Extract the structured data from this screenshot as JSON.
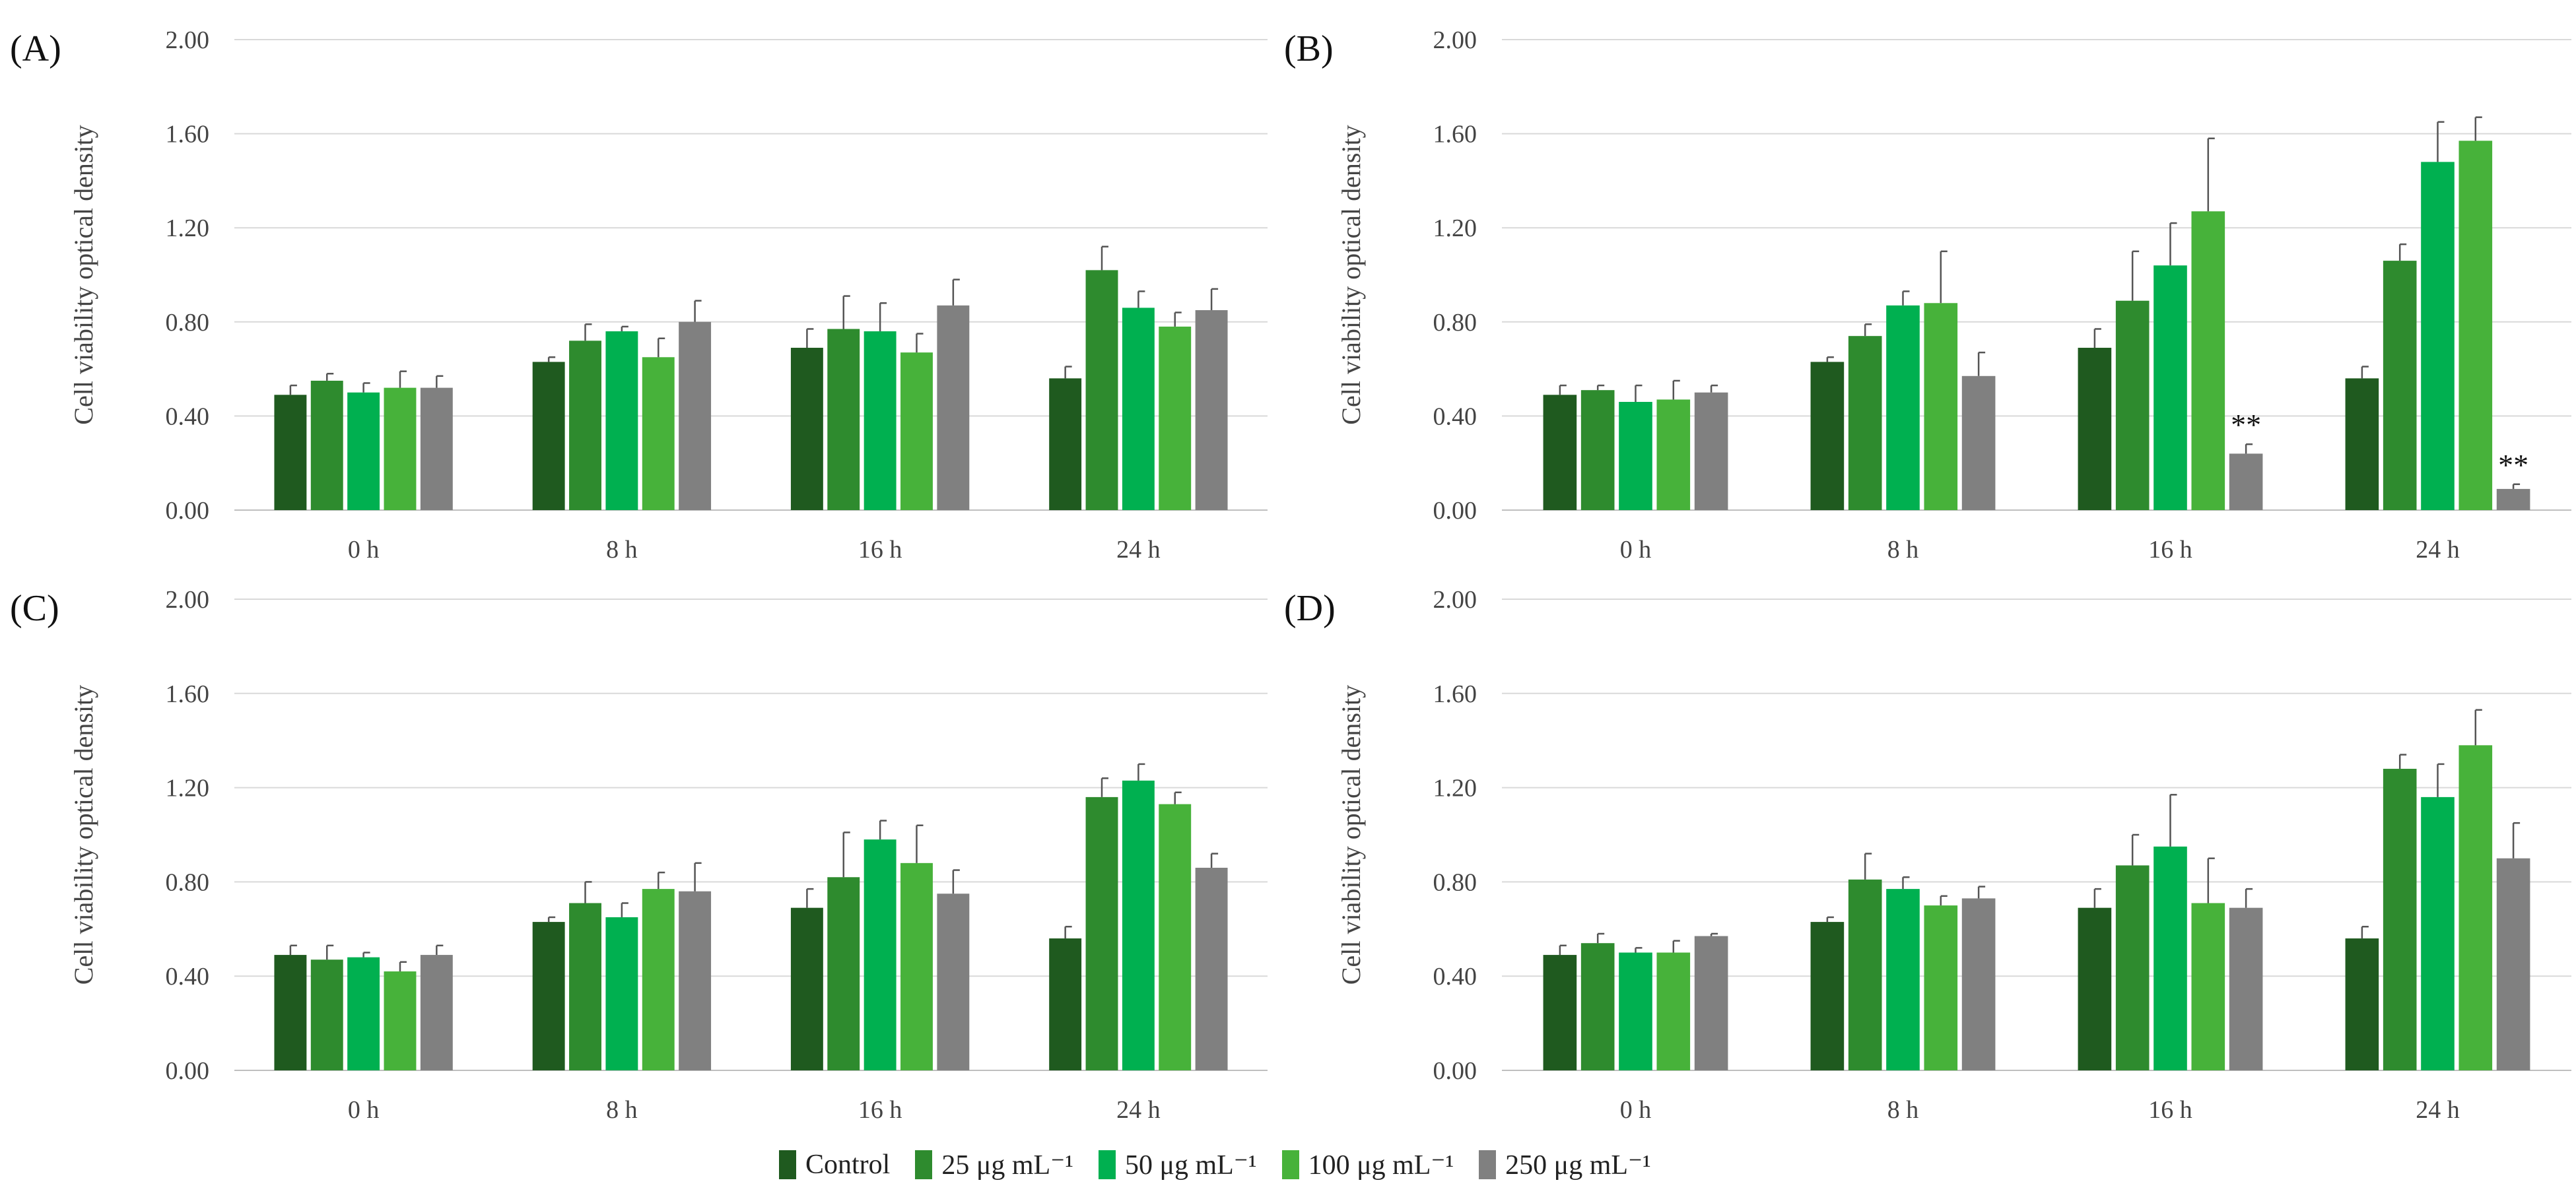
{
  "colors": {
    "Control": "#1f5a1f",
    "25": "#2e8b2e",
    "50": "#00b050",
    "100": "#47b23a",
    "250": "#808080"
  },
  "legend": {
    "items": [
      {
        "key": "Control",
        "label": "Control"
      },
      {
        "key": "25",
        "label": "25 μg mL⁻¹"
      },
      {
        "key": "50",
        "label": "50 μg mL⁻¹"
      },
      {
        "key": "100",
        "label": "100 μg mL⁻¹"
      },
      {
        "key": "250",
        "label": "250 μg mL⁻¹"
      }
    ]
  },
  "chart_data": [
    {
      "type": "bar",
      "panel": "(A)",
      "ylabel": "Cell viability optical density",
      "categories": [
        "0 h",
        "8 h",
        "16 h",
        "24 h"
      ],
      "ylim": [
        0,
        2.0
      ],
      "yticks": [
        "0.00",
        "0.40",
        "0.80",
        "1.20",
        "1.60",
        "2.00"
      ],
      "grid": true,
      "series": [
        {
          "name": "Control",
          "key": "Control",
          "values": [
            0.49,
            0.63,
            0.69,
            0.56
          ],
          "errors": [
            0.04,
            0.02,
            0.08,
            0.05
          ]
        },
        {
          "name": "25 μg mL⁻¹",
          "key": "25",
          "values": [
            0.55,
            0.72,
            0.77,
            1.02
          ],
          "errors": [
            0.03,
            0.07,
            0.14,
            0.1
          ]
        },
        {
          "name": "50 μg mL⁻¹",
          "key": "50",
          "values": [
            0.5,
            0.76,
            0.76,
            0.86
          ],
          "errors": [
            0.04,
            0.02,
            0.12,
            0.07
          ]
        },
        {
          "name": "100 μg mL⁻¹",
          "key": "100",
          "values": [
            0.52,
            0.65,
            0.67,
            0.78
          ],
          "errors": [
            0.07,
            0.08,
            0.08,
            0.06
          ]
        },
        {
          "name": "250 μg mL⁻¹",
          "key": "250",
          "values": [
            0.52,
            0.8,
            0.87,
            0.85
          ],
          "errors": [
            0.05,
            0.09,
            0.11,
            0.09
          ]
        }
      ],
      "annotations": []
    },
    {
      "type": "bar",
      "panel": "(B)",
      "ylabel": "Cell viability optical density",
      "categories": [
        "0 h",
        "8 h",
        "16 h",
        "24 h"
      ],
      "ylim": [
        0,
        2.0
      ],
      "yticks": [
        "0.00",
        "0.40",
        "0.80",
        "1.20",
        "1.60",
        "2.00"
      ],
      "grid": true,
      "series": [
        {
          "name": "Control",
          "key": "Control",
          "values": [
            0.49,
            0.63,
            0.69,
            0.56
          ],
          "errors": [
            0.04,
            0.02,
            0.08,
            0.05
          ]
        },
        {
          "name": "25 μg mL⁻¹",
          "key": "25",
          "values": [
            0.51,
            0.74,
            0.89,
            1.06
          ],
          "errors": [
            0.02,
            0.05,
            0.21,
            0.07
          ]
        },
        {
          "name": "50 μg mL⁻¹",
          "key": "50",
          "values": [
            0.46,
            0.87,
            1.04,
            1.48
          ],
          "errors": [
            0.07,
            0.06,
            0.18,
            0.17
          ]
        },
        {
          "name": "100 μg mL⁻¹",
          "key": "100",
          "values": [
            0.47,
            0.88,
            1.27,
            1.57
          ],
          "errors": [
            0.08,
            0.22,
            0.31,
            0.1
          ]
        },
        {
          "name": "250 μg mL⁻¹",
          "key": "250",
          "values": [
            0.5,
            0.57,
            0.24,
            0.09
          ],
          "errors": [
            0.03,
            0.1,
            0.04,
            0.02
          ]
        }
      ],
      "annotations": [
        {
          "text": "**",
          "series_index": 4,
          "category_index": 2
        },
        {
          "text": "**",
          "series_index": 4,
          "category_index": 3
        }
      ]
    },
    {
      "type": "bar",
      "panel": "(C)",
      "ylabel": "Cell viability optical density",
      "categories": [
        "0 h",
        "8 h",
        "16 h",
        "24 h"
      ],
      "ylim": [
        0,
        2.0
      ],
      "yticks": [
        "0.00",
        "0.40",
        "0.80",
        "1.20",
        "1.60",
        "2.00"
      ],
      "grid": true,
      "series": [
        {
          "name": "Control",
          "key": "Control",
          "values": [
            0.49,
            0.63,
            0.69,
            0.56
          ],
          "errors": [
            0.04,
            0.02,
            0.08,
            0.05
          ]
        },
        {
          "name": "25 μg mL⁻¹",
          "key": "25",
          "values": [
            0.47,
            0.71,
            0.82,
            1.16
          ],
          "errors": [
            0.06,
            0.09,
            0.19,
            0.08
          ]
        },
        {
          "name": "50 μg mL⁻¹",
          "key": "50",
          "values": [
            0.48,
            0.65,
            0.98,
            1.23
          ],
          "errors": [
            0.02,
            0.06,
            0.08,
            0.07
          ]
        },
        {
          "name": "100 μg mL⁻¹",
          "key": "100",
          "values": [
            0.42,
            0.77,
            0.88,
            1.13
          ],
          "errors": [
            0.04,
            0.07,
            0.16,
            0.05
          ]
        },
        {
          "name": "250 μg mL⁻¹",
          "key": "250",
          "values": [
            0.49,
            0.76,
            0.75,
            0.86
          ],
          "errors": [
            0.04,
            0.12,
            0.1,
            0.06
          ]
        }
      ],
      "annotations": []
    },
    {
      "type": "bar",
      "panel": "(D)",
      "ylabel": "Cell viability optical density",
      "categories": [
        "0 h",
        "8 h",
        "16 h",
        "24 h"
      ],
      "ylim": [
        0,
        2.0
      ],
      "yticks": [
        "0.00",
        "0.40",
        "0.80",
        "1.20",
        "1.60",
        "2.00"
      ],
      "grid": true,
      "series": [
        {
          "name": "Control",
          "key": "Control",
          "values": [
            0.49,
            0.63,
            0.69,
            0.56
          ],
          "errors": [
            0.04,
            0.02,
            0.08,
            0.05
          ]
        },
        {
          "name": "25 μg mL⁻¹",
          "key": "25",
          "values": [
            0.54,
            0.81,
            0.87,
            1.28
          ],
          "errors": [
            0.04,
            0.11,
            0.13,
            0.06
          ]
        },
        {
          "name": "50 μg mL⁻¹",
          "key": "50",
          "values": [
            0.5,
            0.77,
            0.95,
            1.16
          ],
          "errors": [
            0.02,
            0.05,
            0.22,
            0.14
          ]
        },
        {
          "name": "100 μg mL⁻¹",
          "key": "100",
          "values": [
            0.5,
            0.7,
            0.71,
            1.38
          ],
          "errors": [
            0.05,
            0.04,
            0.19,
            0.15
          ]
        },
        {
          "name": "250 μg mL⁻¹",
          "key": "250",
          "values": [
            0.57,
            0.73,
            0.69,
            0.9
          ],
          "errors": [
            0.01,
            0.05,
            0.08,
            0.15
          ]
        }
      ],
      "annotations": []
    }
  ]
}
